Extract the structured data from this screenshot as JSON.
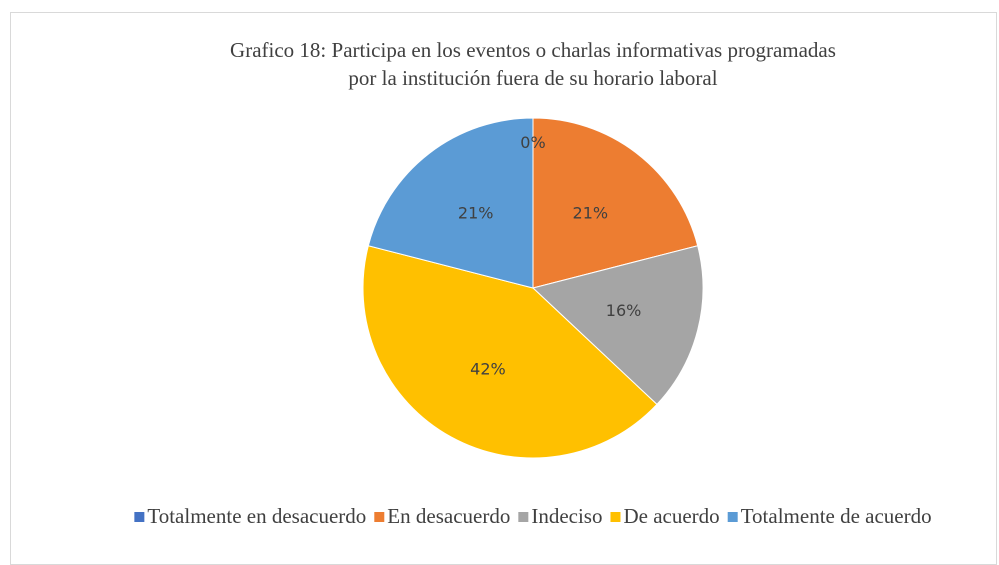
{
  "chart_data": {
    "type": "pie",
    "title": [
      "Grafico 18: Participa en los eventos o charlas informativas programadas",
      "por la institución fuera de su horario laboral"
    ],
    "categories": [
      "Totalmente en desacuerdo",
      "En desacuerdo",
      "Indeciso",
      "De acuerdo",
      "Totalmente de acuerdo"
    ],
    "values": [
      0,
      21,
      16,
      42,
      21
    ],
    "value_labels": [
      "0%",
      "21%",
      "16%",
      "42%",
      "21%"
    ],
    "colors": [
      "#4472c4",
      "#ed7d31",
      "#a5a5a5",
      "#ffc000",
      "#5b9bd5"
    ],
    "legend": "bottom"
  }
}
